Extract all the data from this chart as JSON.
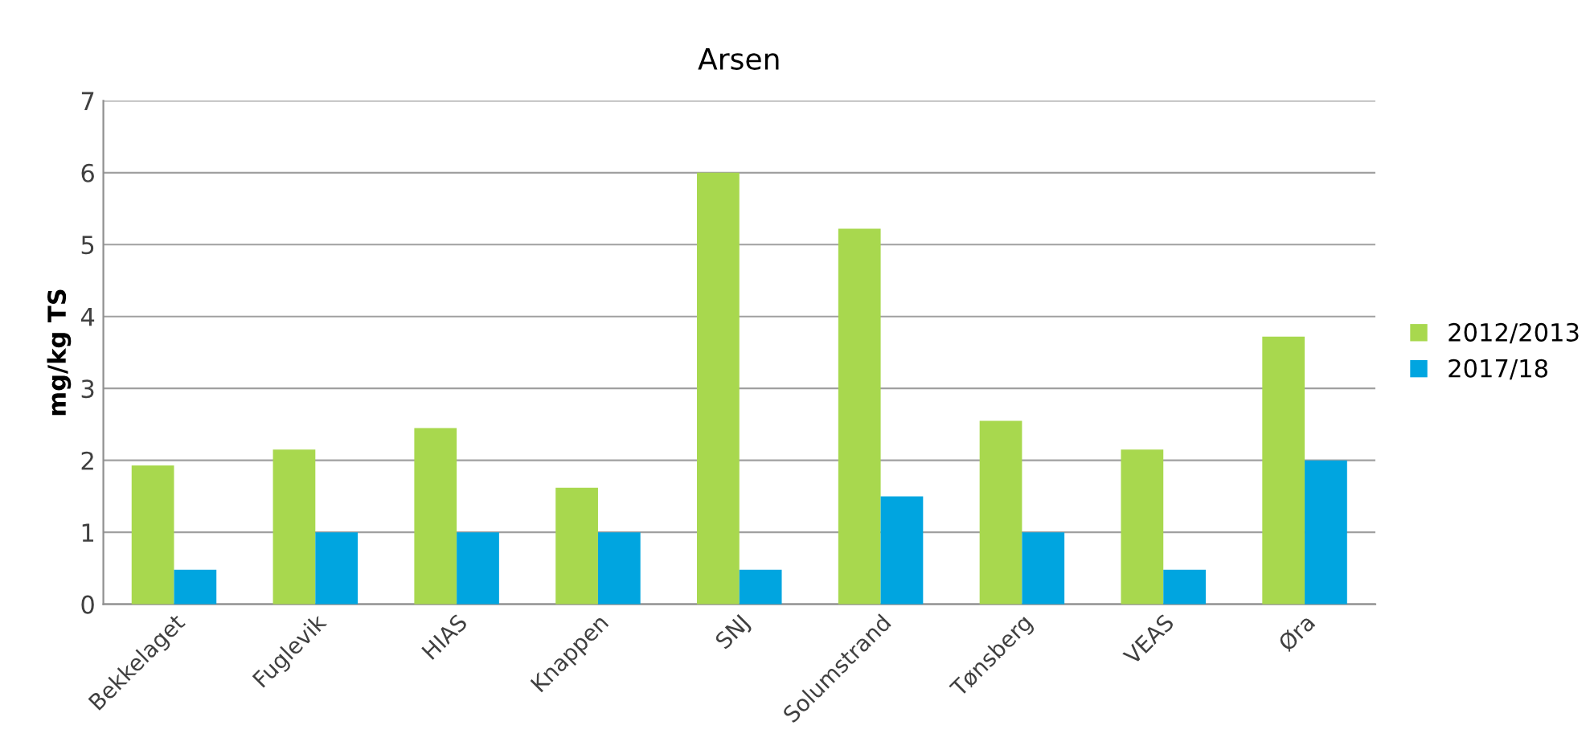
{
  "chart_data": {
    "type": "bar",
    "title": "Arsen",
    "ylabel": "mg/kg TS",
    "categories": [
      "Bekkelaget",
      "Fuglevik",
      "HIAS",
      "Knappen",
      "SNJ",
      "Solumstrand",
      "Tønsberg",
      "VEAS",
      "Øra"
    ],
    "series": [
      {
        "name": "2012/2013",
        "color": "#a8d84e",
        "values": [
          1.93,
          2.15,
          2.45,
          1.62,
          6.0,
          5.22,
          2.55,
          2.15,
          3.72
        ]
      },
      {
        "name": "2017/18",
        "color": "#00a5e0",
        "values": [
          0.48,
          1.0,
          1.0,
          1.0,
          0.48,
          1.5,
          1.0,
          0.48,
          2.0
        ]
      }
    ],
    "ylim": [
      0,
      7
    ],
    "yticks": [
      0,
      1,
      2,
      3,
      4,
      5,
      6,
      7
    ],
    "grid": "y",
    "legend": "right"
  }
}
